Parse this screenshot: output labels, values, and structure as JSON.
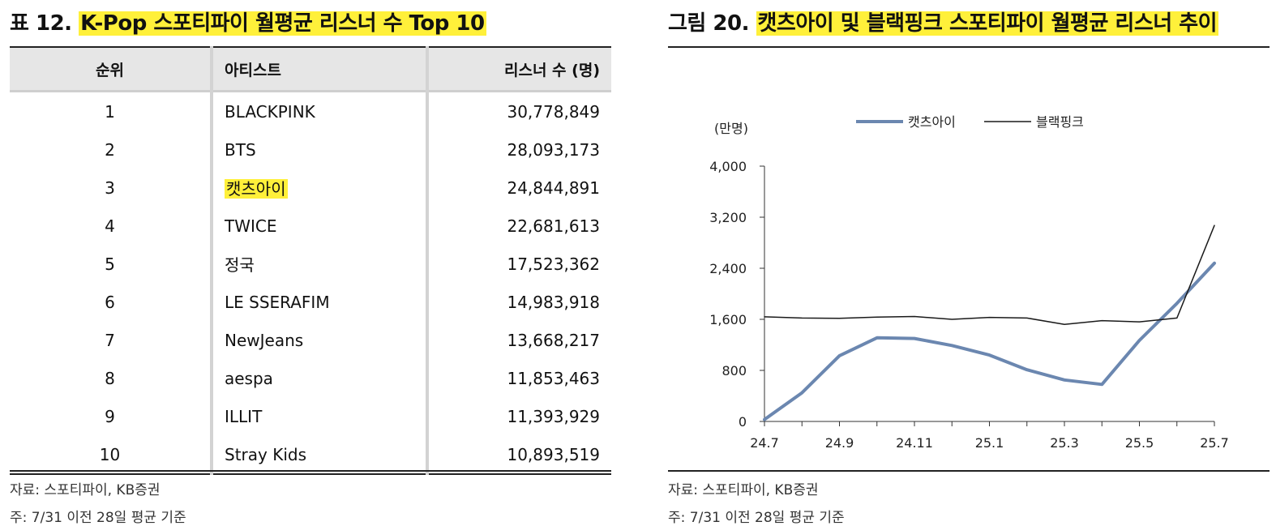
{
  "table_panel": {
    "title_prefix": "표 12.",
    "title_highlight": "K-Pop 스포티파이 월평균 리스너 수 Top 10",
    "columns": [
      "순위",
      "아티스트",
      "리스너 수 (명)"
    ],
    "rows": [
      {
        "rank": "1",
        "artist": "BLACKPINK",
        "listeners": "30,778,849"
      },
      {
        "rank": "2",
        "artist": "BTS",
        "listeners": "28,093,173"
      },
      {
        "rank": "3",
        "artist": "캣츠아이",
        "listeners": "24,844,891",
        "highlight": true
      },
      {
        "rank": "4",
        "artist": "TWICE",
        "listeners": "22,681,613"
      },
      {
        "rank": "5",
        "artist": "정국",
        "listeners": "17,523,362"
      },
      {
        "rank": "6",
        "artist": "LE SSERAFIM",
        "listeners": "14,983,918"
      },
      {
        "rank": "7",
        "artist": "NewJeans",
        "listeners": "13,668,217"
      },
      {
        "rank": "8",
        "artist": "aespa",
        "listeners": "11,853,463"
      },
      {
        "rank": "9",
        "artist": "ILLIT",
        "listeners": "11,393,929"
      },
      {
        "rank": "10",
        "artist": "Stray Kids",
        "listeners": "10,893,519"
      }
    ],
    "source": "자료: 스포티파이, KB증권",
    "footnote": "주: 7/31 이전 28일 평균 기준"
  },
  "chart_panel": {
    "title_prefix": "그림 20.",
    "title_highlight": "캣츠아이 및 블랙핑크 스포티파이 월평균 리스너 추이",
    "source": "자료: 스포티파이, KB증권",
    "footnote": "주: 7/31 이전 28일 평균 기준"
  },
  "highlight_color": "#fff03a",
  "chart_data": {
    "type": "line",
    "unit_label": "(만명)",
    "x": [
      "24.7",
      "24.8",
      "24.9",
      "24.10",
      "24.11",
      "24.12",
      "25.1",
      "25.2",
      "25.3",
      "25.4",
      "25.5",
      "25.6",
      "25.7"
    ],
    "x_tick_labels": [
      "24.7",
      "24.9",
      "24.11",
      "25.1",
      "25.3",
      "25.5",
      "25.7"
    ],
    "y_ticks": [
      "0",
      "800",
      "1,600",
      "2,400",
      "3,200",
      "4,000"
    ],
    "ylim": [
      0,
      4000
    ],
    "legend_position": "top",
    "series": [
      {
        "name": "캣츠아이",
        "color": "#6b87b0",
        "width": 4,
        "values": [
          30,
          450,
          1030,
          1310,
          1300,
          1190,
          1040,
          810,
          650,
          580,
          1270,
          1850,
          2480
        ]
      },
      {
        "name": "블랙핑크",
        "color": "#1a1a1a",
        "width": 1.5,
        "values": [
          1640,
          1620,
          1615,
          1635,
          1645,
          1600,
          1630,
          1620,
          1520,
          1580,
          1560,
          1620,
          3070
        ]
      }
    ]
  }
}
